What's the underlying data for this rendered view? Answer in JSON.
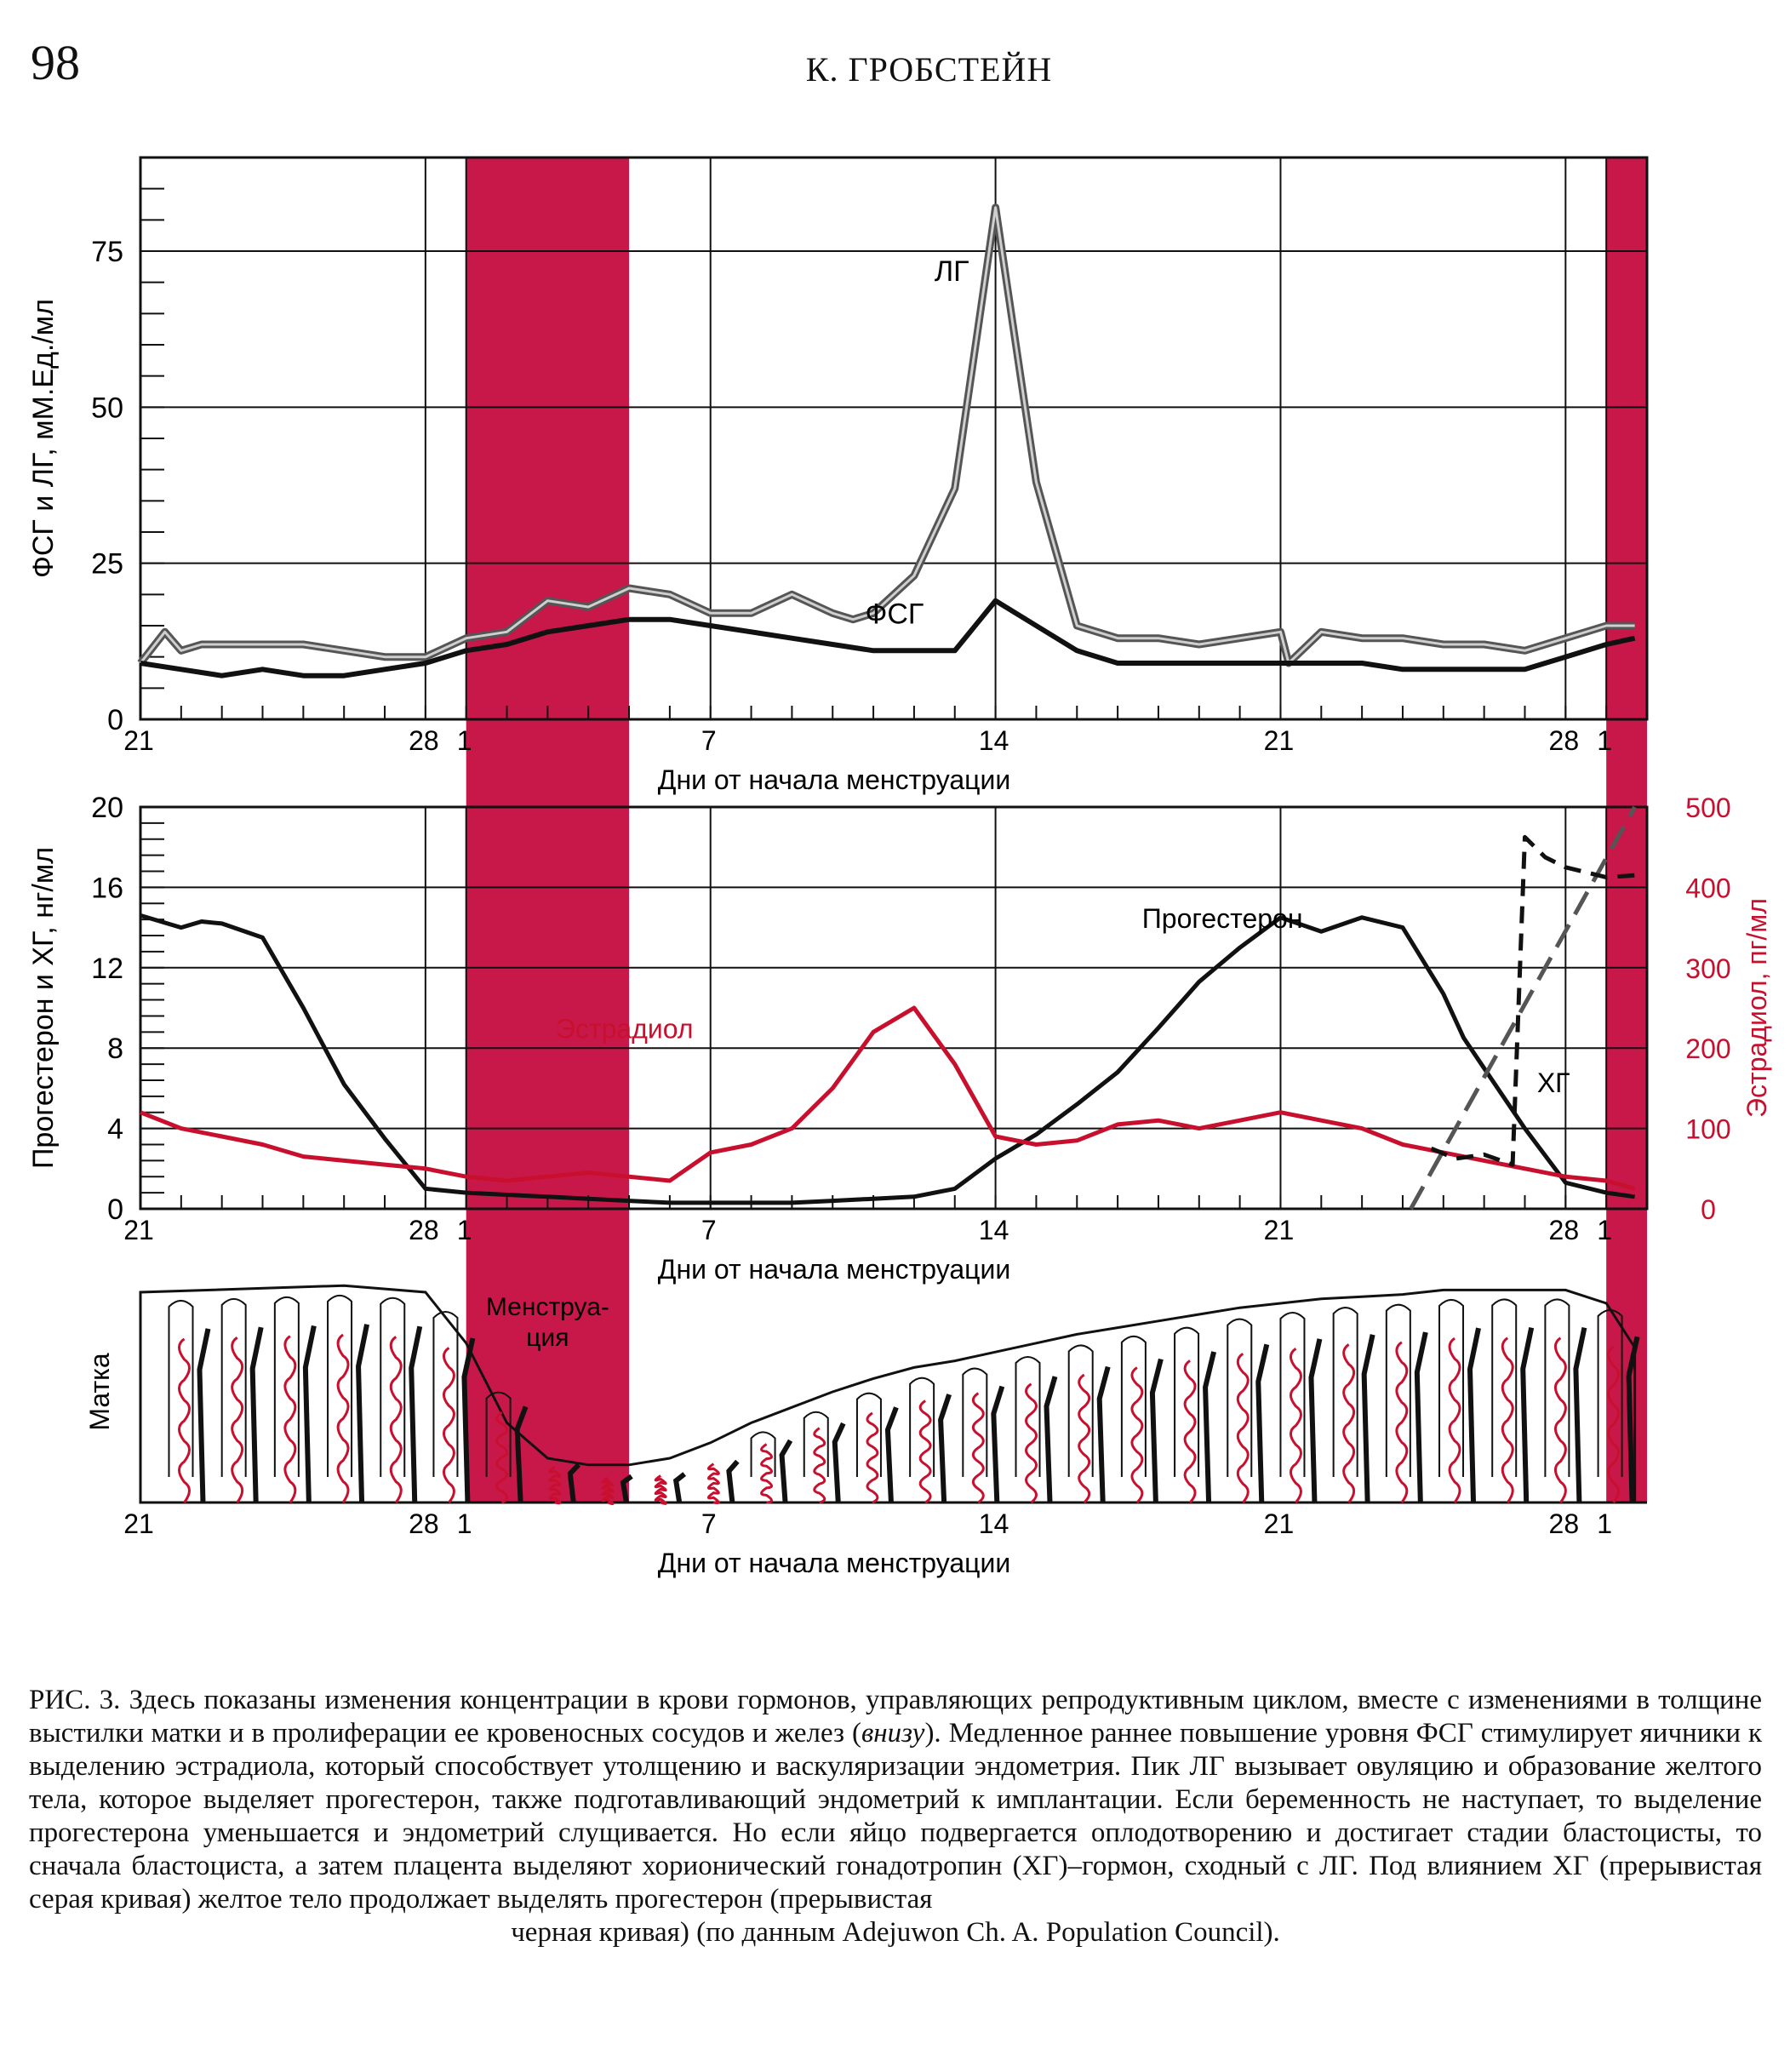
{
  "header": {
    "page_number": "98",
    "author": "К. ГРОБСТЕЙН"
  },
  "colors": {
    "menstruation": "#c8184a",
    "estradiol": "#c8102e",
    "lh": "#7a7a7a",
    "fsh": "#111111",
    "progesterone": "#111111",
    "hcg": "#222222"
  },
  "x_axis": {
    "label": "Дни от начала менструации",
    "ticks": [
      {
        "day": 21,
        "label": "21"
      },
      {
        "day": 28,
        "label": "28"
      },
      {
        "day": 29,
        "label": "1"
      },
      {
        "day": 35,
        "label": "7"
      },
      {
        "day": 42,
        "label": "14"
      },
      {
        "day": 49,
        "label": "21"
      },
      {
        "day": 56,
        "label": "28"
      },
      {
        "day": 57,
        "label": "1"
      }
    ],
    "range": [
      21,
      58
    ]
  },
  "menstruation_bands": [
    [
      29,
      33
    ],
    [
      57,
      58
    ]
  ],
  "chart_data": [
    {
      "type": "line",
      "ylabel": "ФСГ и ЛГ, мМ.Ед./мл",
      "ylim": [
        0,
        90
      ],
      "yticks": [
        0,
        25,
        50,
        75
      ],
      "y_tick_labels": [
        "0",
        "25",
        "50",
        "75"
      ],
      "grid": true,
      "series": [
        {
          "name": "ЛГ",
          "color": "#7a7a7a",
          "x": [
            21,
            21.6,
            22,
            22.5,
            23,
            24,
            25,
            26,
            27,
            28,
            29,
            30,
            31,
            32,
            33,
            34,
            35,
            36,
            37,
            38,
            38.5,
            39,
            40,
            41,
            42,
            43,
            44,
            45,
            46,
            47,
            48,
            49,
            49.2,
            50,
            51,
            52,
            53,
            54,
            55,
            56,
            57,
            57.7
          ],
          "y": [
            9,
            14,
            11,
            12,
            12,
            12,
            12,
            11,
            10,
            10,
            13,
            14,
            19,
            18,
            21,
            20,
            17,
            17,
            20,
            17,
            16,
            17,
            23,
            37,
            82,
            38,
            15,
            13,
            13,
            12,
            13,
            14,
            9,
            14,
            13,
            13,
            12,
            12,
            11,
            13,
            15,
            15
          ]
        },
        {
          "name": "ФСГ",
          "color": "#111111",
          "x": [
            21,
            22,
            23,
            24,
            25,
            26,
            27,
            28,
            29,
            30,
            31,
            32,
            33,
            34,
            35,
            36,
            37,
            38,
            39,
            40,
            41,
            42,
            43,
            44,
            45,
            46,
            47,
            48,
            49,
            50,
            51,
            52,
            53,
            54,
            55,
            56,
            57,
            57.7
          ],
          "y": [
            9,
            8,
            7,
            8,
            7,
            7,
            8,
            9,
            11,
            12,
            14,
            15,
            16,
            16,
            15,
            14,
            13,
            12,
            11,
            11,
            11,
            19,
            15,
            11,
            9,
            9,
            9,
            9,
            9,
            9,
            9,
            8,
            8,
            8,
            8,
            10,
            12,
            13
          ]
        }
      ]
    },
    {
      "type": "line",
      "ylabel": "Прогестерон и ХГ, нг/мл",
      "y2label": "Эстрадиол, пг/мл",
      "ylim": [
        0,
        20
      ],
      "yticks": [
        0,
        4,
        8,
        12,
        16,
        20
      ],
      "y_tick_labels": [
        "0",
        "4",
        "8",
        "12",
        "16",
        "20"
      ],
      "y2lim": [
        0,
        500
      ],
      "y2ticks": [
        0,
        100,
        200,
        300,
        400,
        500
      ],
      "y2_tick_labels": [
        "0",
        "100",
        "200",
        "300",
        "400",
        "500"
      ],
      "grid": true,
      "series": [
        {
          "name": "Прогестерон",
          "axis": "left",
          "color": "#111111",
          "dash": "solid",
          "x": [
            21,
            22,
            22.5,
            23,
            24,
            25,
            26,
            27,
            28,
            29,
            30,
            31,
            32,
            33,
            34,
            35,
            36,
            37,
            38,
            39,
            40,
            41,
            42,
            43,
            44,
            45,
            46,
            47,
            48,
            49,
            50,
            51,
            52,
            53,
            53.5,
            54,
            55,
            56,
            57,
            57.7
          ],
          "y": [
            14.6,
            14,
            14.3,
            14.2,
            13.5,
            10,
            6.2,
            3.5,
            1,
            0.8,
            0.7,
            0.6,
            0.5,
            0.4,
            0.3,
            0.3,
            0.3,
            0.3,
            0.4,
            0.5,
            0.6,
            1,
            2.5,
            3.7,
            5.2,
            6.8,
            9,
            11.3,
            13,
            14.5,
            13.8,
            14.5,
            14,
            10.7,
            8.5,
            7,
            4,
            1.3,
            0.8,
            0.6
          ]
        },
        {
          "name": "Эстрадиол",
          "axis": "right",
          "color": "#c8102e",
          "dash": "solid",
          "x": [
            21,
            22,
            23,
            24,
            25,
            26,
            27,
            28,
            29,
            30,
            31,
            32,
            33,
            34,
            35,
            36,
            37,
            38,
            39,
            40,
            41,
            42,
            43,
            44,
            45,
            46,
            47,
            48,
            49,
            50,
            51,
            52,
            53,
            54,
            55,
            56,
            57,
            57.7
          ],
          "y": [
            120,
            100,
            90,
            80,
            65,
            60,
            55,
            50,
            40,
            35,
            40,
            45,
            40,
            35,
            70,
            80,
            100,
            150,
            220,
            250,
            180,
            90,
            80,
            85,
            105,
            110,
            100,
            110,
            120,
            110,
            100,
            80,
            70,
            60,
            50,
            40,
            35,
            25
          ]
        },
        {
          "name": "ХГ",
          "axis": "left",
          "color": "#555555",
          "dash": "long",
          "x": [
            52.2,
            57.7
          ],
          "y": [
            0,
            20
          ]
        },
        {
          "name": "",
          "axis": "left",
          "color": "#111111",
          "dash": "short",
          "x": [
            52.7,
            53.3,
            54,
            54.7,
            55,
            55.5,
            56,
            57,
            57.7
          ],
          "y": [
            3,
            2.5,
            2.7,
            2.2,
            18.5,
            17.5,
            17,
            16.5,
            16.6
          ]
        }
      ]
    }
  ],
  "uterus": {
    "ylabel": "Матка",
    "band_label_line1": "Менструа-",
    "band_label_line2": "ция",
    "thickness": {
      "x": [
        21,
        26,
        28,
        29,
        30,
        31,
        32,
        33,
        34,
        35,
        36,
        37,
        38,
        39,
        40,
        41,
        42,
        43,
        44,
        45,
        46,
        47,
        48,
        49,
        50,
        51,
        52,
        53,
        54,
        55,
        56,
        57,
        57.7
      ],
      "y": [
        0.95,
        0.98,
        0.95,
        0.72,
        0.36,
        0.2,
        0.17,
        0.17,
        0.2,
        0.27,
        0.36,
        0.43,
        0.5,
        0.56,
        0.61,
        0.64,
        0.68,
        0.72,
        0.76,
        0.79,
        0.82,
        0.85,
        0.88,
        0.9,
        0.92,
        0.93,
        0.94,
        0.96,
        0.96,
        0.96,
        0.96,
        0.9,
        0.7
      ]
    }
  },
  "caption": {
    "lead": "РИС. 3. Здесь показаны изменения концентрации в крови гормонов, управляющих репродуктивным цикл­ом, вместе с изменениями в толщине выстилки матки и в пролиферации ее кровеносных сосудов и желез (",
    "italic": "внизу",
    "rest": "). Медленное раннее повышение уровня ФСГ стимулирует яичники к выделению эстрадиола, который способствует утолщению и васкуляризации эндометрия. Пик ЛГ вызывает овуляцию и образование желтого тела, которое выделяет прогестерон, также подготавливающий эндометрий к имплантации. Если беременность не наступает, то выделение прогестерона уменьшается и эндометрий слущивается. Но если яйцо подвергается оплодотворению и достигает стадии бластоцисты, то сначала бластоциста, а затем плацента выделяют хорионический гонадотропин (ХГ)–гормон, сходный с ЛГ. Под влиянием ХГ (прерывистая серая кривая) желтое тело продолжает выделять прогестерон (прерывистая",
    "last_line": "черная кривая) (по данным Adejuwon Ch. A. Population Council)."
  }
}
